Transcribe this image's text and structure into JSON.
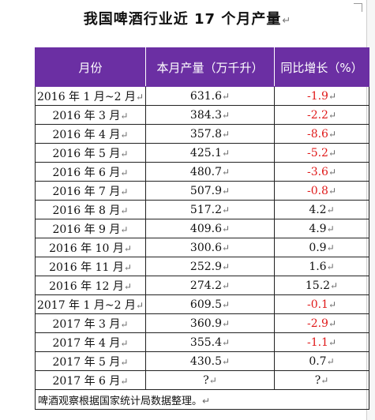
{
  "title": "我国啤酒行业近 17 个月产量",
  "paragraph_mark": "↵",
  "headers": [
    "月份",
    "本月产量（万千升）",
    "同比增长（%）"
  ],
  "rows": [
    {
      "month": "2016 年 1 月~2 月",
      "production": "631.6",
      "growth": "-1.9"
    },
    {
      "month": "2016 年 3 月",
      "production": "384.3",
      "growth": "-2.2"
    },
    {
      "month": "2016 年 4 月",
      "production": "357.8",
      "growth": "-8.6"
    },
    {
      "month": "2016 年 5 月",
      "production": "425.1",
      "growth": "-5.2"
    },
    {
      "month": "2016 年 6 月",
      "production": "480.7",
      "growth": "-3.6"
    },
    {
      "month": "2016 年 7 月",
      "production": "507.9",
      "growth": "-0.8"
    },
    {
      "month": "2016 年 8 月",
      "production": "517.2",
      "growth": "4.2"
    },
    {
      "month": "2016 年 9 月",
      "production": "409.6",
      "growth": "4.9"
    },
    {
      "month": "2016 年 10 月",
      "production": "300.6",
      "growth": "0.9"
    },
    {
      "month": "2016 年 11 月",
      "production": "252.9",
      "growth": "1.6"
    },
    {
      "month": "2016 年 12 月",
      "production": "274.2",
      "growth": "15.2"
    },
    {
      "month": "2017 年 1 月~2 月",
      "production": "609.5",
      "growth": "-0.1"
    },
    {
      "month": "2017 年 3 月",
      "production": "360.9",
      "growth": "-2.9"
    },
    {
      "month": "2017 年 4 月",
      "production": "355.4",
      "growth": "-1.1"
    },
    {
      "month": "2017 年 5 月",
      "production": "430.5",
      "growth": "0.7"
    },
    {
      "month": "2017 年 6 月",
      "production": "?",
      "growth": "?"
    }
  ],
  "footer": "啤酒观察根据国家统计局数据整理。",
  "colors": {
    "header_bg": "#6b2fa3",
    "negative": "#e01b1b"
  }
}
